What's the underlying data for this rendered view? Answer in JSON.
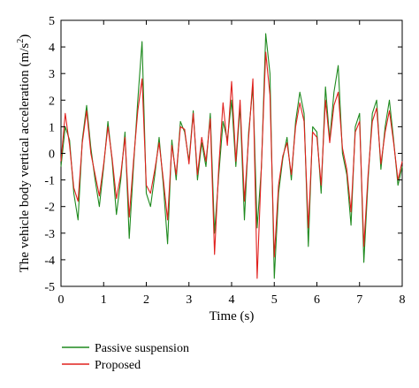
{
  "chart_data": {
    "type": "line",
    "xlabel": "Time (s)",
    "ylabel_prefix": "The vehicle body vertical acceleration (m/s",
    "ylabel_sup": "2",
    "ylabel_suffix": ")",
    "xlim": [
      0,
      8
    ],
    "ylim": [
      -5,
      5
    ],
    "xticks": [
      0,
      1,
      2,
      3,
      4,
      5,
      6,
      7,
      8
    ],
    "yticks": [
      5,
      4,
      3,
      2,
      1,
      0,
      -1,
      -2,
      -3,
      -4,
      -5
    ],
    "grid": false,
    "legend_position": "below",
    "series": [
      {
        "name": "Passive suspension",
        "color": "#1f8a1f",
        "x": [
          0,
          0.1,
          0.2,
          0.3,
          0.4,
          0.5,
          0.6,
          0.7,
          0.8,
          0.9,
          1.0,
          1.1,
          1.2,
          1.3,
          1.4,
          1.5,
          1.6,
          1.7,
          1.8,
          1.9,
          2.0,
          2.1,
          2.2,
          2.3,
          2.4,
          2.5,
          2.6,
          2.7,
          2.8,
          2.9,
          3.0,
          3.1,
          3.2,
          3.3,
          3.4,
          3.5,
          3.6,
          3.7,
          3.8,
          3.9,
          4.0,
          4.1,
          4.2,
          4.3,
          4.4,
          4.5,
          4.6,
          4.7,
          4.8,
          4.9,
          5.0,
          5.1,
          5.2,
          5.3,
          5.4,
          5.5,
          5.6,
          5.7,
          5.8,
          5.9,
          6.0,
          6.1,
          6.2,
          6.3,
          6.4,
          6.5,
          6.6,
          6.7,
          6.8,
          6.9,
          7.0,
          7.1,
          7.2,
          7.3,
          7.4,
          7.5,
          7.6,
          7.7,
          7.8,
          7.9,
          8.0
        ],
        "y": [
          -0.5,
          1.0,
          0.5,
          -1.5,
          -2.5,
          0.5,
          1.8,
          0.2,
          -1.0,
          -2.0,
          -0.5,
          1.2,
          -0.3,
          -2.3,
          -1.0,
          0.8,
          -3.2,
          -0.5,
          2.0,
          4.2,
          -1.5,
          -2.0,
          -0.8,
          0.6,
          -1.2,
          -3.4,
          0.5,
          -1.0,
          1.2,
          0.8,
          -0.3,
          1.6,
          -1.0,
          0.4,
          -0.5,
          1.5,
          -3.0,
          -0.8,
          1.2,
          0.5,
          2.0,
          -0.5,
          1.8,
          -2.5,
          0.8,
          2.5,
          -2.8,
          -0.5,
          4.5,
          3.0,
          -4.7,
          -1.5,
          -0.2,
          0.6,
          -1.0,
          1.2,
          2.3,
          1.5,
          -3.5,
          1.0,
          0.8,
          -1.5,
          2.5,
          0.5,
          2.3,
          3.3,
          0.0,
          -0.8,
          -2.7,
          1.0,
          1.5,
          -4.1,
          -1.0,
          1.5,
          2.0,
          -0.6,
          1.0,
          2.0,
          0.5,
          -1.2,
          -0.5
        ]
      },
      {
        "name": "Proposed",
        "color": "#e0201d",
        "x": [
          0,
          0.1,
          0.2,
          0.3,
          0.4,
          0.5,
          0.6,
          0.7,
          0.8,
          0.9,
          1.0,
          1.1,
          1.2,
          1.3,
          1.4,
          1.5,
          1.6,
          1.7,
          1.8,
          1.9,
          2.0,
          2.1,
          2.2,
          2.3,
          2.4,
          2.5,
          2.6,
          2.7,
          2.8,
          2.9,
          3.0,
          3.1,
          3.2,
          3.3,
          3.4,
          3.5,
          3.6,
          3.7,
          3.8,
          3.9,
          4.0,
          4.1,
          4.2,
          4.3,
          4.4,
          4.5,
          4.6,
          4.7,
          4.8,
          4.9,
          5.0,
          5.1,
          5.2,
          5.3,
          5.4,
          5.5,
          5.6,
          5.7,
          5.8,
          5.9,
          6.0,
          6.1,
          6.2,
          6.3,
          6.4,
          6.5,
          6.6,
          6.7,
          6.8,
          6.9,
          7.0,
          7.1,
          7.2,
          7.3,
          7.4,
          7.5,
          7.6,
          7.7,
          7.8,
          7.9,
          8.0
        ],
        "y": [
          -0.3,
          1.5,
          0.3,
          -1.3,
          -1.8,
          0.4,
          1.6,
          0.0,
          -0.8,
          -1.6,
          -0.4,
          1.0,
          -0.2,
          -1.7,
          -0.8,
          0.6,
          -2.4,
          -0.3,
          1.6,
          2.8,
          -1.2,
          -1.5,
          -0.6,
          0.4,
          -1.0,
          -2.5,
          0.3,
          -0.8,
          1.0,
          0.9,
          -0.4,
          1.5,
          -0.8,
          0.6,
          -0.3,
          1.3,
          -3.8,
          -0.5,
          1.9,
          0.3,
          2.7,
          -0.3,
          2.0,
          -1.8,
          0.6,
          2.8,
          -4.7,
          -0.4,
          3.8,
          2.2,
          -3.9,
          -1.2,
          -0.1,
          0.4,
          -0.8,
          1.0,
          1.9,
          1.2,
          -2.8,
          0.8,
          0.6,
          -1.2,
          2.0,
          0.4,
          1.8,
          2.3,
          0.2,
          -0.6,
          -2.2,
          0.8,
          1.2,
          -3.5,
          -0.8,
          1.2,
          1.7,
          -0.4,
          0.8,
          1.6,
          0.4,
          -1.0,
          -0.3
        ]
      }
    ]
  }
}
